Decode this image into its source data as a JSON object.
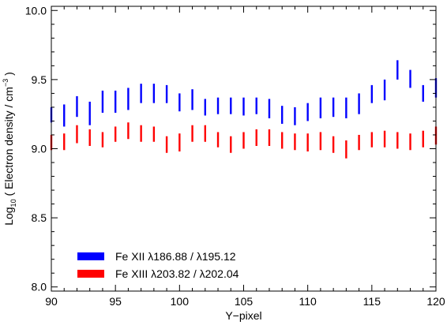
{
  "chart_data": {
    "type": "scatter",
    "xlabel": "Y−pixel",
    "ylabel": {
      "prefix": "Log",
      "sub": "10",
      "mid": " ( Electron density / cm",
      "sup": "−3",
      "suffix": " )"
    },
    "xlim": [
      90,
      120
    ],
    "ylim": [
      7.97,
      10.03
    ],
    "x_ticks": [
      90,
      95,
      100,
      105,
      110,
      115,
      120
    ],
    "x_tick_labels": [
      "90",
      "95",
      "100",
      "105",
      "110",
      "115",
      "120"
    ],
    "y_ticks": [
      8.0,
      8.5,
      9.0,
      9.5,
      10.0
    ],
    "y_tick_labels": [
      "8.0",
      "8.5",
      "9.0",
      "9.5",
      "10.0"
    ],
    "grid": false,
    "legend_position": "bottom-left",
    "series": [
      {
        "name": "Fe XII λ186.88 / λ195.12",
        "color": "#0000ff",
        "x": [
          90,
          91,
          92,
          93,
          94,
          95,
          96,
          97,
          98,
          99,
          100,
          101,
          102,
          103,
          104,
          105,
          106,
          107,
          108,
          109,
          110,
          111,
          112,
          113,
          114,
          115,
          116,
          117,
          118,
          119,
          120
        ],
        "low": [
          9.19,
          9.16,
          9.23,
          9.17,
          9.26,
          9.26,
          9.28,
          9.33,
          9.33,
          9.33,
          9.27,
          9.28,
          9.24,
          9.25,
          9.25,
          9.24,
          9.25,
          9.22,
          9.18,
          9.17,
          9.2,
          9.22,
          9.23,
          9.22,
          9.25,
          9.33,
          9.35,
          9.5,
          9.44,
          9.34,
          9.37
        ],
        "high": [
          9.3,
          9.32,
          9.38,
          9.34,
          9.42,
          9.42,
          9.44,
          9.47,
          9.47,
          9.46,
          9.4,
          9.43,
          9.36,
          9.37,
          9.37,
          9.37,
          9.37,
          9.36,
          9.31,
          9.3,
          9.33,
          9.37,
          9.37,
          9.37,
          9.4,
          9.46,
          9.5,
          9.64,
          9.57,
          9.46,
          9.51
        ]
      },
      {
        "name": "Fe XIII λ203.82 / λ202.04",
        "color": "#ff0000",
        "x": [
          90,
          91,
          92,
          93,
          94,
          95,
          96,
          97,
          98,
          99,
          100,
          101,
          102,
          103,
          104,
          105,
          106,
          107,
          108,
          109,
          110,
          111,
          112,
          113,
          114,
          115,
          116,
          117,
          118,
          119,
          120
        ],
        "low": [
          8.99,
          8.99,
          9.04,
          9.02,
          9.01,
          9.05,
          9.07,
          9.05,
          9.05,
          8.97,
          8.98,
          9.05,
          9.05,
          9.01,
          8.97,
          9.0,
          9.02,
          9.02,
          9.0,
          8.99,
          8.98,
          8.99,
          8.97,
          8.93,
          8.99,
          9.01,
          9.01,
          9.0,
          8.99,
          9.01,
          9.03
        ],
        "high": [
          9.1,
          9.11,
          9.17,
          9.14,
          9.12,
          9.16,
          9.19,
          9.17,
          9.16,
          9.09,
          9.11,
          9.17,
          9.17,
          9.12,
          9.09,
          9.12,
          9.14,
          9.14,
          9.12,
          9.11,
          9.11,
          9.12,
          9.09,
          9.06,
          9.1,
          9.12,
          9.13,
          9.12,
          9.11,
          9.13,
          9.16
        ]
      }
    ]
  }
}
